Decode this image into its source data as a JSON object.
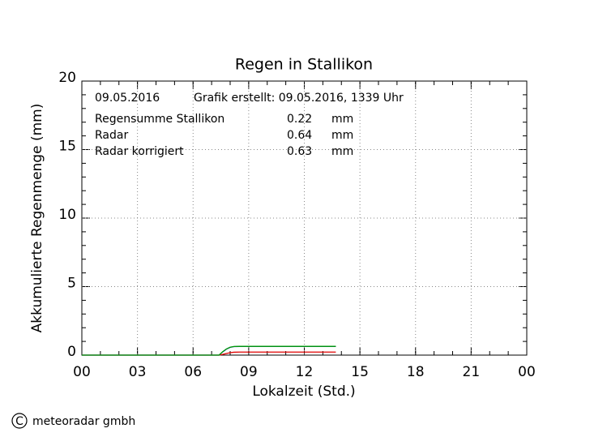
{
  "chart_data": {
    "type": "line",
    "title": "Regen in Stallikon",
    "date": "09.05.2016",
    "created": "Grafik erstellt: 09.05.2016, 1339 Uhr",
    "unit": "mm",
    "x_label": "Lokalzeit (Std.)",
    "y_label": "Akkumulierte Regenmenge (mm)",
    "x": [
      0,
      7.4,
      7.6,
      7.8,
      8.0,
      8.2,
      8.5,
      13.7
    ],
    "series": [
      {
        "name": "Regensumme Stallikon",
        "color": "#e00000",
        "total": 0.22,
        "values": [
          0,
          0,
          0.05,
          0.12,
          0.18,
          0.21,
          0.22,
          0.22
        ]
      },
      {
        "name": "Radar",
        "color": "#00a000",
        "total": 0.64,
        "values": [
          0,
          0,
          0.25,
          0.45,
          0.58,
          0.63,
          0.64,
          0.64
        ]
      },
      {
        "name": "Radar korrigiert",
        "color": "#0000d0",
        "total": 0.63,
        "values": [
          0,
          0,
          0.24,
          0.44,
          0.57,
          0.62,
          0.63,
          0.63
        ]
      }
    ],
    "xlim": [
      0,
      24
    ],
    "xticks": [
      {
        "value": 0,
        "label": "00"
      },
      {
        "value": 3,
        "label": "03"
      },
      {
        "value": 6,
        "label": "06"
      },
      {
        "value": 9,
        "label": "09"
      },
      12,
      15,
      18,
      21,
      {
        "value": 24,
        "label": "00"
      }
    ],
    "ylim": [
      0,
      20
    ],
    "yticks": [
      0,
      5,
      10,
      15,
      20
    ],
    "grid": true,
    "copyright_symbol": "C",
    "copyright": "meteoradar gmbh"
  }
}
